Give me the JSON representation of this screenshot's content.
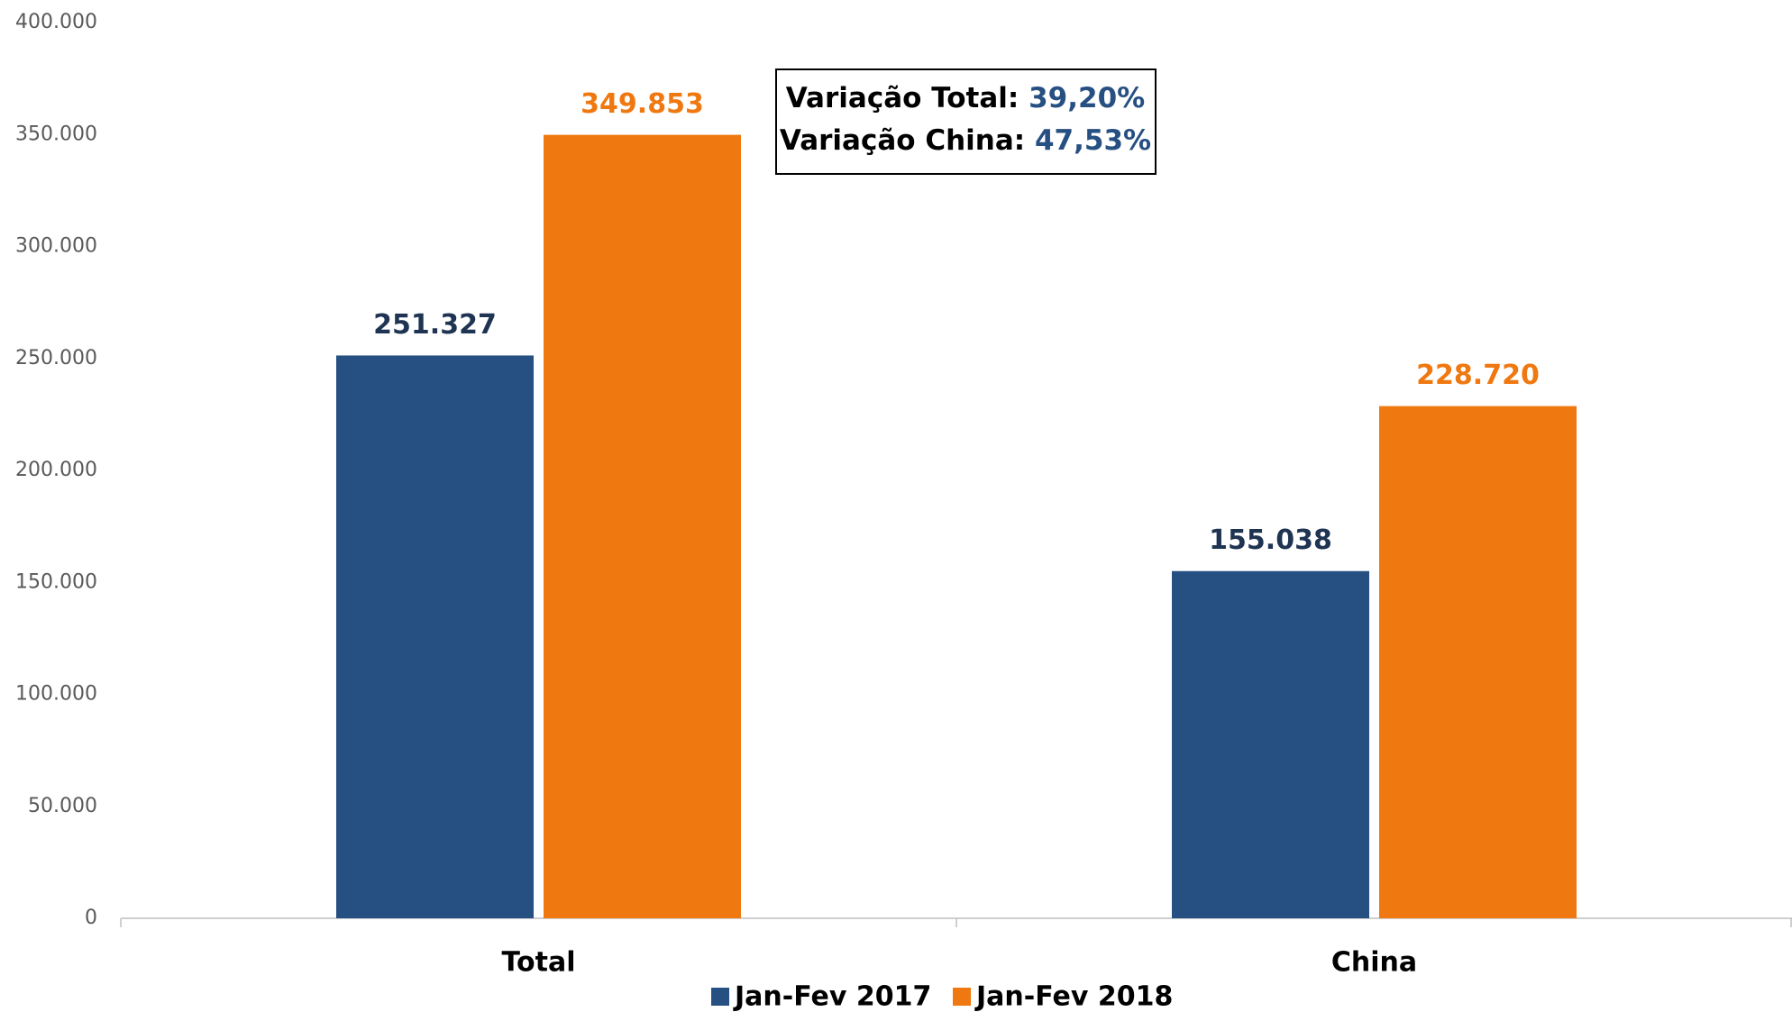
{
  "chart_data": {
    "type": "bar",
    "categories": [
      "Total",
      "China"
    ],
    "series": [
      {
        "name": "Jan-Fev 2017",
        "color": "#264f82",
        "values": [
          251327,
          155038
        ],
        "value_labels": [
          "251.327",
          "155.038"
        ]
      },
      {
        "name": "Jan-Fev 2018",
        "color": "#f07810",
        "values": [
          349853,
          228720
        ],
        "value_labels": [
          "349.853",
          "228.720"
        ]
      }
    ],
    "ylim": [
      0,
      400000
    ],
    "yticks": [
      0,
      {
        "value": 50000,
        "label": "50.000"
      },
      {
        "value": 100000,
        "label": "100.000"
      },
      {
        "value": 150000,
        "label": "150.000"
      },
      {
        "value": 200000,
        "label": "200.000"
      },
      {
        "value": 250000,
        "label": "250.000"
      },
      {
        "value": 300000,
        "label": "300.000"
      },
      {
        "value": 350000,
        "label": "350.000"
      },
      {
        "value": 400000,
        "label": "400.000"
      }
    ],
    "grid": false,
    "legend": "bottom",
    "annotations": [
      {
        "label": "Variação Total:",
        "value": "39,20%"
      },
      {
        "label": "Variação China:",
        "value": "47,53%"
      }
    ]
  }
}
